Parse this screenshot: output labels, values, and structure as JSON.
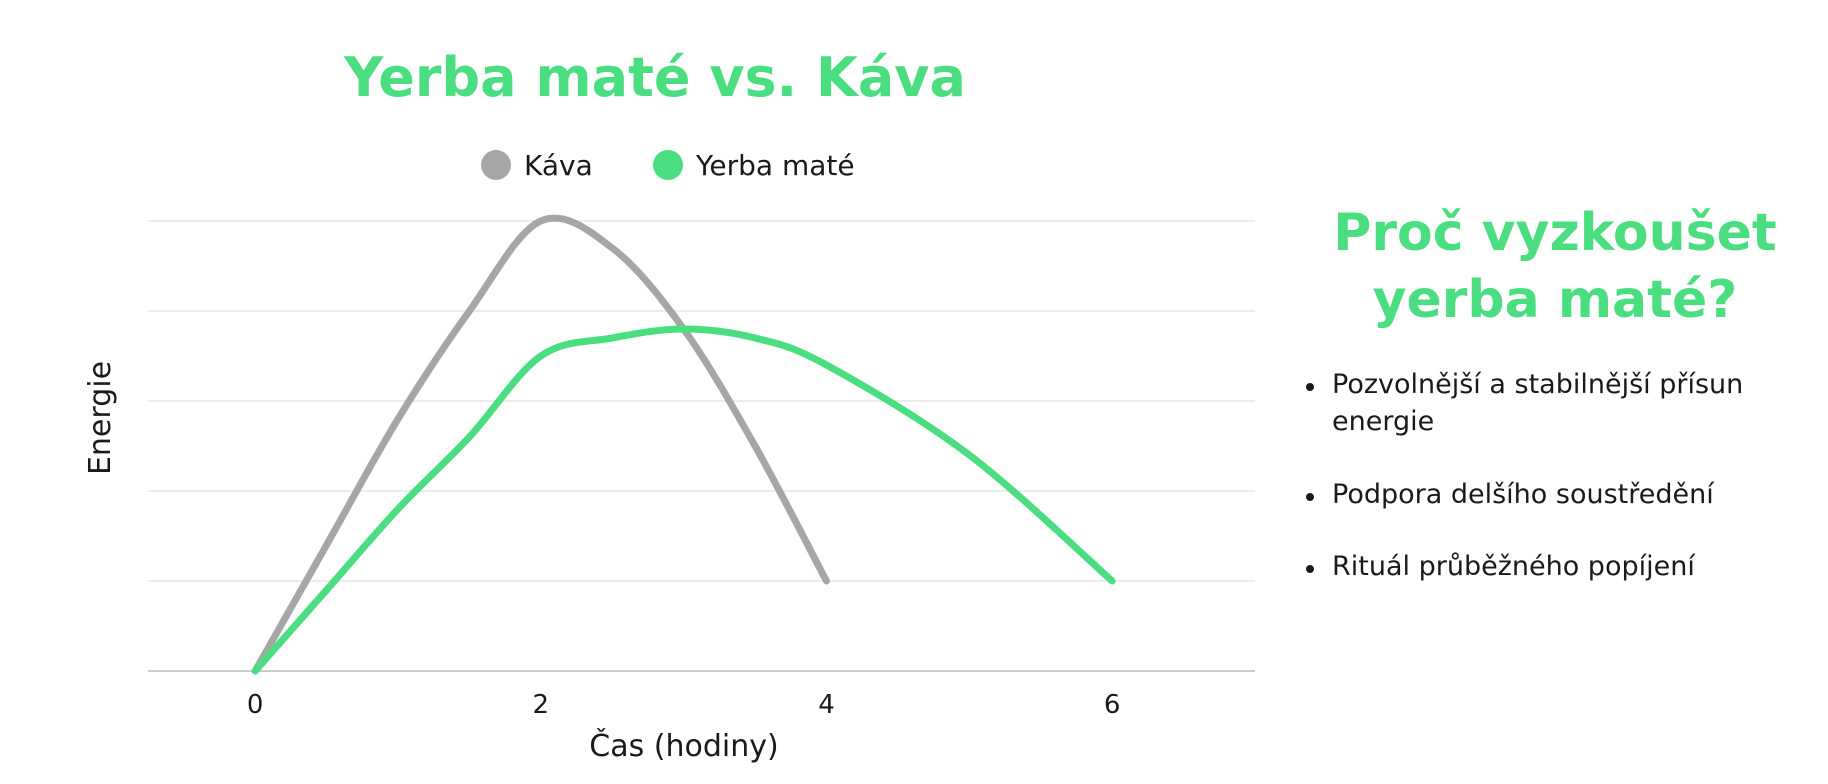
{
  "chart_data": {
    "type": "line",
    "title": "Yerba maté vs. Káva",
    "xlabel": "Čas (hodiny)",
    "ylabel": "Energie",
    "x_ticks": [
      0,
      2,
      4,
      6
    ],
    "xlim": [
      -0.75,
      7
    ],
    "ylim": [
      0,
      5
    ],
    "y_gridlines": [
      1,
      2,
      3,
      4,
      5
    ],
    "y_tick_labels_shown": false,
    "legend_position": "top-center",
    "series": [
      {
        "name": "Káva",
        "color": "#a6a6a6",
        "points": [
          [
            0,
            0
          ],
          [
            0.5,
            1.4
          ],
          [
            1,
            2.8
          ],
          [
            1.5,
            4.0
          ],
          [
            2,
            5.0
          ],
          [
            2.5,
            4.7
          ],
          [
            3,
            3.8
          ],
          [
            3.5,
            2.5
          ],
          [
            4,
            1.0
          ]
        ]
      },
      {
        "name": "Yerba maté",
        "color": "#4ade80",
        "points": [
          [
            0,
            0
          ],
          [
            0.5,
            0.9
          ],
          [
            1,
            1.8
          ],
          [
            1.5,
            2.6
          ],
          [
            2,
            3.5
          ],
          [
            2.5,
            3.7
          ],
          [
            3,
            3.8
          ],
          [
            3.5,
            3.7
          ],
          [
            4,
            3.4
          ],
          [
            5,
            2.4
          ],
          [
            6,
            1.0
          ]
        ]
      }
    ]
  },
  "side_panel": {
    "title_line1": "Proč vyzkoušet",
    "title_line2": "yerba maté?",
    "bullets": [
      "Pozvolnější a stabilnější přísun energie",
      "Podpora delšího soustředění",
      "Rituál průběžného popíjení"
    ]
  }
}
